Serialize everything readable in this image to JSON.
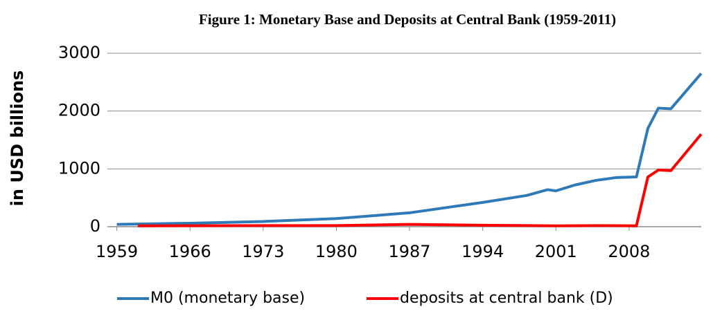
{
  "chart_data": {
    "type": "line",
    "title": "Figure 1: Monetary Base and Deposits at Central Bank (1959-2011)",
    "y_label": "in USD billions",
    "xlim": [
      1958.1,
      2014.9
    ],
    "xticks": [
      1959,
      1966,
      1973,
      1980,
      1987,
      1994,
      2001,
      2008
    ],
    "ylim": [
      0,
      3000
    ],
    "yticks": [
      0,
      1000,
      2000,
      3000
    ],
    "grid": true,
    "legend": "bottom",
    "series": [
      {
        "name": "M0 (monetary base)",
        "color": "#2e7ab8",
        "x": [
          1959,
          1966,
          1973,
          1980,
          1987,
          1994,
          1998.2,
          2000.2,
          2001,
          2002.8,
          2004.8,
          2006.8,
          2008.7,
          2009.8,
          2010.8,
          2012,
          2014.9
        ],
        "values": [
          40,
          60,
          90,
          140,
          240,
          420,
          540,
          640,
          620,
          720,
          800,
          850,
          860,
          1700,
          2050,
          2040,
          2650
        ]
      },
      {
        "name": "deposits at central bank (D)",
        "color": "#ff0000",
        "x": [
          1961,
          1973,
          1980,
          1987,
          1994,
          2001,
          2005,
          2008.7,
          2009.8,
          2010.8,
          2012,
          2014.9
        ],
        "values": [
          15,
          20,
          20,
          40,
          25,
          15,
          20,
          15,
          860,
          980,
          970,
          1600
        ]
      }
    ]
  }
}
